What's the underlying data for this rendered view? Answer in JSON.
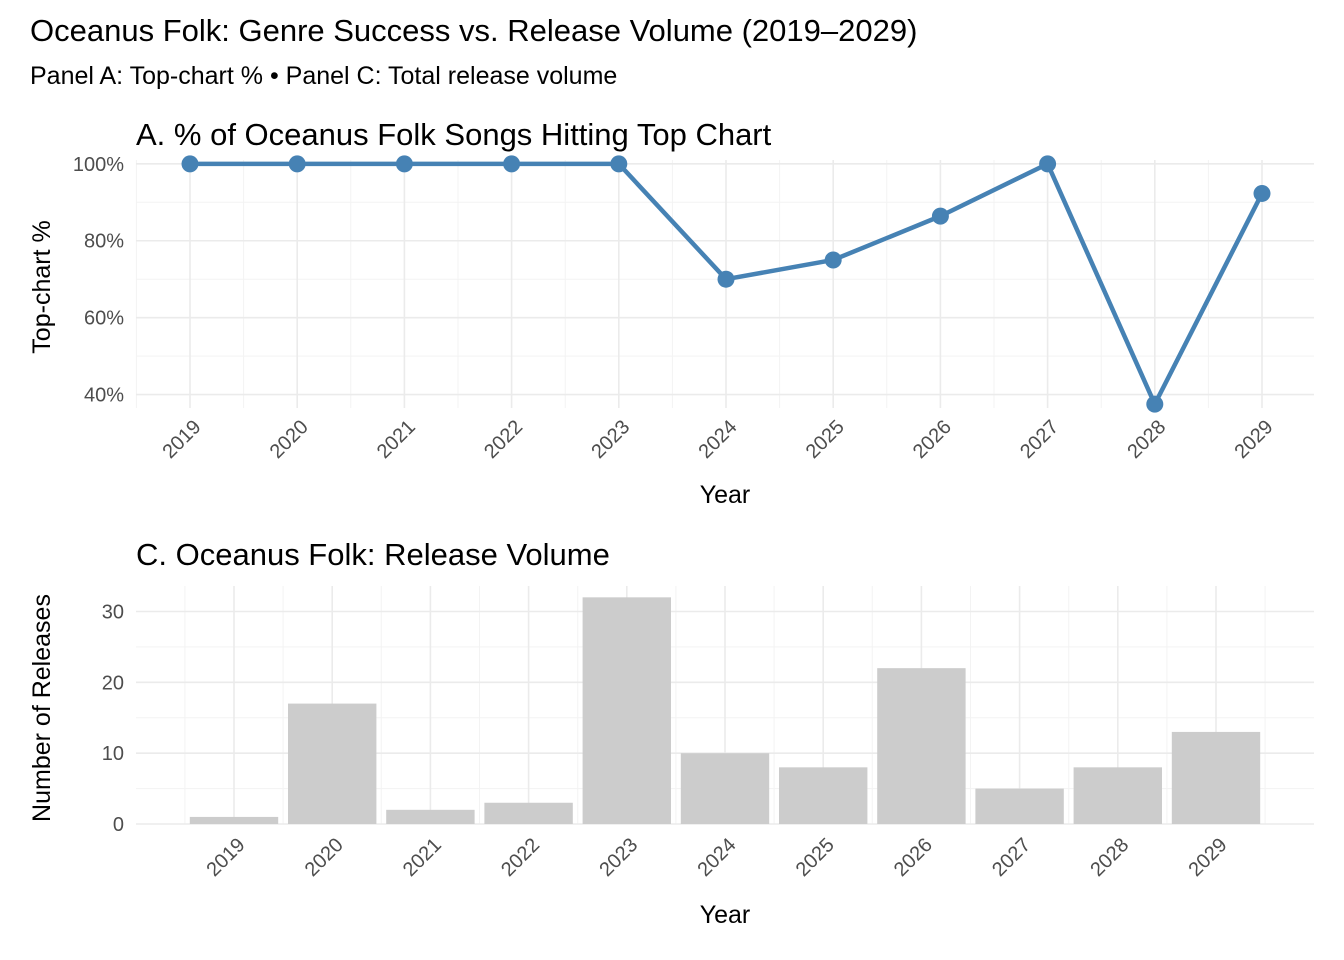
{
  "title": "Oceanus Folk: Genre Success vs. Release Volume (2019–2029)",
  "subtitle": "Panel A: Top-chart %  •  Panel C: Total release volume",
  "colors": {
    "line": "#4682b4",
    "bar": "#cccccc",
    "grid": "#ebebeb",
    "tick_text": "#4d4d4d"
  },
  "chart_data": [
    {
      "type": "line",
      "title": "A. % of Oceanus Folk Songs Hitting Top Chart",
      "xlabel": "Year",
      "ylabel": "Top-chart %",
      "categories": [
        "2019",
        "2020",
        "2021",
        "2022",
        "2023",
        "2024",
        "2025",
        "2026",
        "2027",
        "2028",
        "2029"
      ],
      "values": [
        100,
        100,
        100,
        100,
        100,
        70,
        75,
        86.4,
        100,
        37.5,
        92.3
      ],
      "ylim": [
        36.5,
        101
      ],
      "yticks": [
        40,
        60,
        80,
        100
      ],
      "ytick_labels": [
        "40%",
        "60%",
        "80%",
        "100%"
      ],
      "grid": true,
      "legend": "none"
    },
    {
      "type": "bar",
      "title": "C. Oceanus Folk: Release Volume",
      "xlabel": "Year",
      "ylabel": "Number of Releases",
      "categories": [
        "2019",
        "2020",
        "2021",
        "2022",
        "2023",
        "2024",
        "2025",
        "2026",
        "2027",
        "2028",
        "2029"
      ],
      "values": [
        1,
        17,
        2,
        3,
        32,
        10,
        8,
        22,
        5,
        8,
        13
      ],
      "ylim": [
        0,
        33.6
      ],
      "yticks": [
        0,
        10,
        20,
        30
      ],
      "ytick_labels": [
        "0",
        "10",
        "20",
        "30"
      ],
      "grid": true,
      "legend": "none"
    }
  ]
}
